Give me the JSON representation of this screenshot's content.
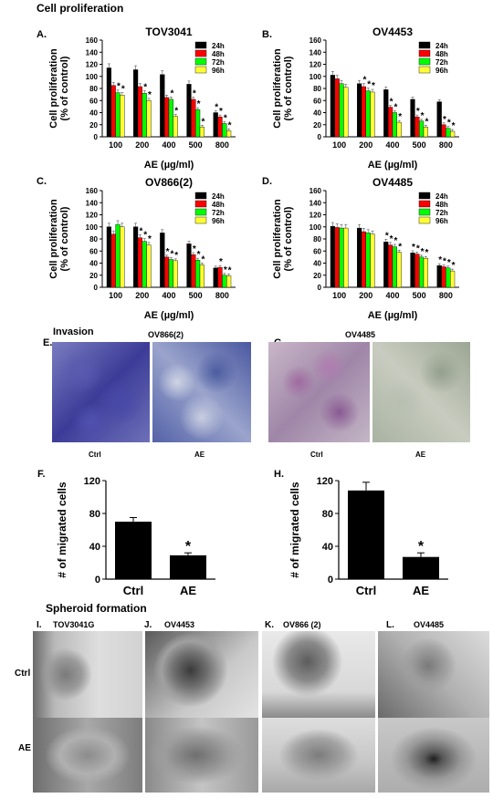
{
  "sections": {
    "proliferation": "Cell proliferation",
    "invasion": "Invasion",
    "spheroid": "Spheroid formation"
  },
  "panel_letters": {
    "A": "A.",
    "B": "B.",
    "C": "C.",
    "D": "D.",
    "E": "E.",
    "F": "F.",
    "G": "G.",
    "H": "H.",
    "I": "I.",
    "J": "J.",
    "K": "K.",
    "L": "L."
  },
  "invasion_images": {
    "E_title": "OV866(2)",
    "G_title": "OV4485",
    "ctrl": "Ctrl",
    "ae": "AE"
  },
  "spheroid_images": {
    "I": "TOV3041G",
    "J": "OV4453",
    "K": "OV866 (2)",
    "L": "OV4485",
    "row_ctrl": "Ctrl",
    "row_ae": "AE"
  },
  "colors": {
    "24h": "#000000",
    "48h": "#ff0000",
    "72h": "#00ff00",
    "96h": "#ffff33"
  },
  "chart_data": [
    {
      "id": "A",
      "type": "bar",
      "title": "TOV3041",
      "xlabel": "AE (µg/ml)",
      "ylabel": "Cell proliferation\n(% of control)",
      "ylim": [
        0,
        160
      ],
      "yticks": [
        0,
        20,
        40,
        60,
        80,
        100,
        120,
        140,
        160
      ],
      "legend": "top-right",
      "categories": [
        "100",
        "200",
        "400",
        "500",
        "800"
      ],
      "series": [
        {
          "name": "24h",
          "values": [
            114,
            111,
            103,
            87,
            40
          ]
        },
        {
          "name": "48h",
          "values": [
            85,
            83,
            65,
            62,
            33
          ]
        },
        {
          "name": "72h",
          "values": [
            73,
            72,
            62,
            45,
            22
          ]
        },
        {
          "name": "96h",
          "values": [
            69,
            60,
            34,
            16,
            10
          ]
        }
      ],
      "stars": [
        [
          0,
          0,
          1,
          1
        ],
        [
          0,
          0,
          1,
          1
        ],
        [
          0,
          0,
          1,
          1
        ],
        [
          0,
          1,
          1,
          1
        ],
        [
          1,
          1,
          1,
          1
        ]
      ]
    },
    {
      "id": "B",
      "type": "bar",
      "title": "OV4453",
      "xlabel": "AE (µg/ml)",
      "ylabel": "Cell proliferation\n(% of control)",
      "ylim": [
        0,
        160
      ],
      "yticks": [
        0,
        20,
        40,
        60,
        80,
        100,
        120,
        140,
        160
      ],
      "legend": "top-right",
      "categories": [
        "100",
        "200",
        "400",
        "500",
        "800"
      ],
      "series": [
        {
          "name": "24h",
          "values": [
            102,
            88,
            78,
            62,
            58
          ]
        },
        {
          "name": "48h",
          "values": [
            96,
            83,
            49,
            33,
            20
          ]
        },
        {
          "name": "72h",
          "values": [
            88,
            76,
            40,
            26,
            14
          ]
        },
        {
          "name": "96h",
          "values": [
            82,
            74,
            24,
            16,
            9
          ]
        }
      ],
      "stars": [
        [
          0,
          0,
          0,
          0
        ],
        [
          0,
          1,
          1,
          1
        ],
        [
          0,
          1,
          1,
          1
        ],
        [
          0,
          1,
          1,
          1
        ],
        [
          0,
          1,
          1,
          1
        ]
      ]
    },
    {
      "id": "C",
      "type": "bar",
      "title": "OV866(2)",
      "xlabel": "AE (µg/ml)",
      "ylabel": "Cell proliferation\n(% of control)",
      "ylim": [
        0,
        160
      ],
      "yticks": [
        0,
        20,
        40,
        60,
        80,
        100,
        120,
        140,
        160
      ],
      "legend": "top-right",
      "categories": [
        "100",
        "200",
        "400",
        "500",
        "800"
      ],
      "series": [
        {
          "name": "24h",
          "values": [
            100,
            100,
            90,
            72,
            32
          ]
        },
        {
          "name": "48h",
          "values": [
            88,
            82,
            50,
            54,
            33
          ]
        },
        {
          "name": "72h",
          "values": [
            104,
            76,
            46,
            45,
            20
          ]
        },
        {
          "name": "96h",
          "values": [
            100,
            70,
            44,
            37,
            19
          ]
        }
      ],
      "stars": [
        [
          0,
          0,
          0,
          0
        ],
        [
          0,
          1,
          1,
          1
        ],
        [
          0,
          1,
          1,
          1
        ],
        [
          0,
          1,
          1,
          1
        ],
        [
          0,
          1,
          1,
          1
        ]
      ]
    },
    {
      "id": "D",
      "type": "bar",
      "title": "OV4485",
      "xlabel": "AE (µg/ml)",
      "ylabel": "Cell proliferation\n(% of control)",
      "ylim": [
        0,
        160
      ],
      "yticks": [
        0,
        20,
        40,
        60,
        80,
        100,
        120,
        140,
        160
      ],
      "legend": "top-right",
      "categories": [
        "100",
        "200",
        "400",
        "500",
        "800"
      ],
      "series": [
        {
          "name": "24h",
          "values": [
            101,
            98,
            75,
            57,
            36
          ]
        },
        {
          "name": "48h",
          "values": [
            99,
            92,
            70,
            55,
            34
          ]
        },
        {
          "name": "72h",
          "values": [
            98,
            90,
            67,
            50,
            32
          ]
        },
        {
          "name": "96h",
          "values": [
            98,
            88,
            58,
            48,
            27
          ]
        }
      ],
      "stars": [
        [
          0,
          0,
          0,
          0
        ],
        [
          0,
          0,
          0,
          0
        ],
        [
          1,
          1,
          1,
          1
        ],
        [
          1,
          1,
          1,
          1
        ],
        [
          1,
          1,
          1,
          1
        ]
      ]
    },
    {
      "id": "F",
      "type": "bar",
      "title": "",
      "xlabel": "",
      "ylabel": "# of migrated cells",
      "ylim": [
        0,
        120
      ],
      "yticks": [
        0,
        40,
        80,
        120
      ],
      "categories": [
        "Ctrl",
        "AE"
      ],
      "values": [
        70,
        29
      ],
      "errors": [
        5,
        3
      ],
      "stars": [
        0,
        1
      ]
    },
    {
      "id": "H",
      "type": "bar",
      "title": "",
      "xlabel": "",
      "ylabel": "# of migrated cells",
      "ylim": [
        0,
        120
      ],
      "yticks": [
        0,
        40,
        80,
        120
      ],
      "categories": [
        "Ctrl",
        "AE"
      ],
      "values": [
        108,
        27
      ],
      "errors": [
        10,
        5
      ],
      "stars": [
        0,
        1
      ]
    }
  ]
}
